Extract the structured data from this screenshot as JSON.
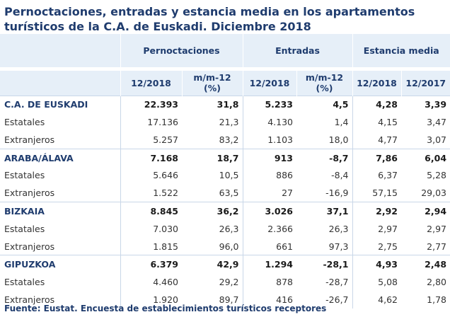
{
  "title": "Pernoctaciones, entradas y estancia media en los apartamentos turísticos de la C.A. de Euskadi. Diciembre 2018",
  "headers": {
    "groups": [
      "Pernoctaciones",
      "Entradas",
      "Estancia media"
    ],
    "sub": [
      "12/2018",
      "m/m-12 (%)",
      "12/2018",
      "m/m-12 (%)",
      "12/2018",
      "12/2017"
    ]
  },
  "rows": [
    {
      "label": "C.A. DE EUSKADI",
      "type": "region",
      "values": [
        "22.393",
        "31,8",
        "5.233",
        "4,5",
        "4,28",
        "3,39"
      ]
    },
    {
      "label": "Estatales",
      "type": "sub",
      "values": [
        "17.136",
        "21,3",
        "4.130",
        "1,4",
        "4,15",
        "3,47"
      ]
    },
    {
      "label": "Extranjeros",
      "type": "sub",
      "values": [
        "5.257",
        "83,2",
        "1.103",
        "18,0",
        "4,77",
        "3,07"
      ]
    },
    {
      "label": "ARABA/ÁLAVA",
      "type": "region",
      "values": [
        "7.168",
        "18,7",
        "913",
        "-8,7",
        "7,86",
        "6,04"
      ]
    },
    {
      "label": "Estatales",
      "type": "sub",
      "values": [
        "5.646",
        "10,5",
        "886",
        "-8,4",
        "6,37",
        "5,28"
      ]
    },
    {
      "label": "Extranjeros",
      "type": "sub",
      "values": [
        "1.522",
        "63,5",
        "27",
        "-16,9",
        "57,15",
        "29,03"
      ]
    },
    {
      "label": "BIZKAIA",
      "type": "region",
      "values": [
        "8.845",
        "36,2",
        "3.026",
        "37,1",
        "2,92",
        "2,94"
      ]
    },
    {
      "label": "Estatales",
      "type": "sub",
      "values": [
        "7.030",
        "26,3",
        "2.366",
        "26,3",
        "2,97",
        "2,97"
      ]
    },
    {
      "label": "Extranjeros",
      "type": "sub",
      "values": [
        "1.815",
        "96,0",
        "661",
        "97,3",
        "2,75",
        "2,77"
      ]
    },
    {
      "label": "GIPUZKOA",
      "type": "region",
      "values": [
        "6.379",
        "42,9",
        "1.294",
        "-28,1",
        "4,93",
        "2,48"
      ]
    },
    {
      "label": "Estatales",
      "type": "sub",
      "values": [
        "4.460",
        "29,2",
        "878",
        "-28,7",
        "5,08",
        "2,80"
      ]
    },
    {
      "label": "Extranjeros",
      "type": "sub",
      "values": [
        "1.920",
        "89,7",
        "416",
        "-26,7",
        "4,62",
        "1,78"
      ]
    }
  ],
  "footer": "Fuente: Eustat. Encuesta de establecimientos turísticos receptores"
}
